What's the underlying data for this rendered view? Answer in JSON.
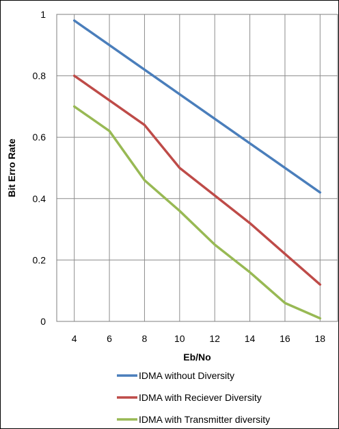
{
  "chart_data": {
    "type": "line",
    "title": "",
    "xlabel": "Eb/No",
    "ylabel": "Bit Erro Rate",
    "x": [
      4,
      6,
      8,
      10,
      12,
      14,
      16,
      18
    ],
    "x_ticks": [
      "4",
      "6",
      "8",
      "10",
      "12",
      "14",
      "16",
      "18"
    ],
    "y_ticks": [
      "0",
      "0.2",
      "0.4",
      "0.6",
      "0.8",
      "1"
    ],
    "xlim": [
      3,
      19
    ],
    "ylim": [
      0,
      1
    ],
    "grid": true,
    "legend_position": "bottom",
    "series": [
      {
        "name": "IDMA without Diversity",
        "color": "#4a7ebb",
        "x": [
          4,
          18
        ],
        "y": [
          0.98,
          0.42
        ]
      },
      {
        "name": "IDMA with Reciever Diversity",
        "color": "#be4b48",
        "x": [
          4,
          6,
          8,
          10,
          12,
          14,
          16,
          18
        ],
        "y": [
          0.8,
          0.72,
          0.64,
          0.5,
          0.41,
          0.32,
          0.22,
          0.12
        ]
      },
      {
        "name": "IDMA with Transmitter diversity",
        "color": "#98b954",
        "x": [
          4,
          6,
          8,
          10,
          12,
          14,
          16,
          18
        ],
        "y": [
          0.7,
          0.62,
          0.46,
          0.36,
          0.25,
          0.16,
          0.06,
          0.01
        ]
      }
    ]
  }
}
